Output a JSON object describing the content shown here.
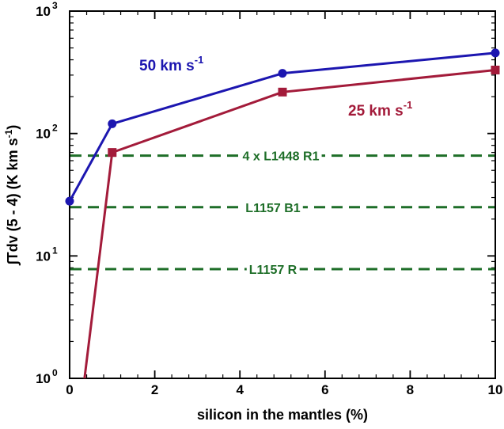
{
  "chart_data": {
    "type": "line",
    "xlabel": "silicon in the mantles (%)",
    "ylabel": "∫Tdv (5 - 4) (K km s",
    "ylabel_sup": "-1",
    "ylabel_tail": ")",
    "xlim": [
      0,
      10
    ],
    "ylim": [
      1,
      1000
    ],
    "yscale": "log",
    "grid": false,
    "x_ticks": [
      0,
      2,
      4,
      6,
      8,
      10
    ],
    "x_tick_labels": [
      "0",
      "2",
      "4",
      "6",
      "8",
      "10"
    ],
    "y_ticks": [
      1,
      10,
      100,
      1000
    ],
    "y_tick_labels": [
      {
        "base": "10",
        "exp": "0"
      },
      {
        "base": "10",
        "exp": "1"
      },
      {
        "base": "10",
        "exp": "2"
      },
      {
        "base": "10",
        "exp": "3"
      }
    ],
    "series": [
      {
        "name": "50 km s",
        "name_sup": "-1",
        "color": "#1c16b0",
        "marker": "circle",
        "x": [
          0,
          1,
          5,
          10
        ],
        "y": [
          28,
          120,
          310,
          455
        ]
      },
      {
        "name": "25 km s",
        "name_sup": "-1",
        "color": "#a31b3a",
        "marker": "square",
        "x": [
          0.35,
          1,
          5,
          10
        ],
        "y": [
          1,
          70,
          218,
          330
        ],
        "first_point_marker": false
      }
    ],
    "reference_lines": [
      {
        "label": "4 x L1448 R1",
        "y": 66,
        "color": "#1e6e28"
      },
      {
        "label": "L1157 B1",
        "y": 25,
        "color": "#1e6e28"
      },
      {
        "label": "L1157 R",
        "y": 7.8,
        "color": "#1e6e28"
      }
    ]
  }
}
